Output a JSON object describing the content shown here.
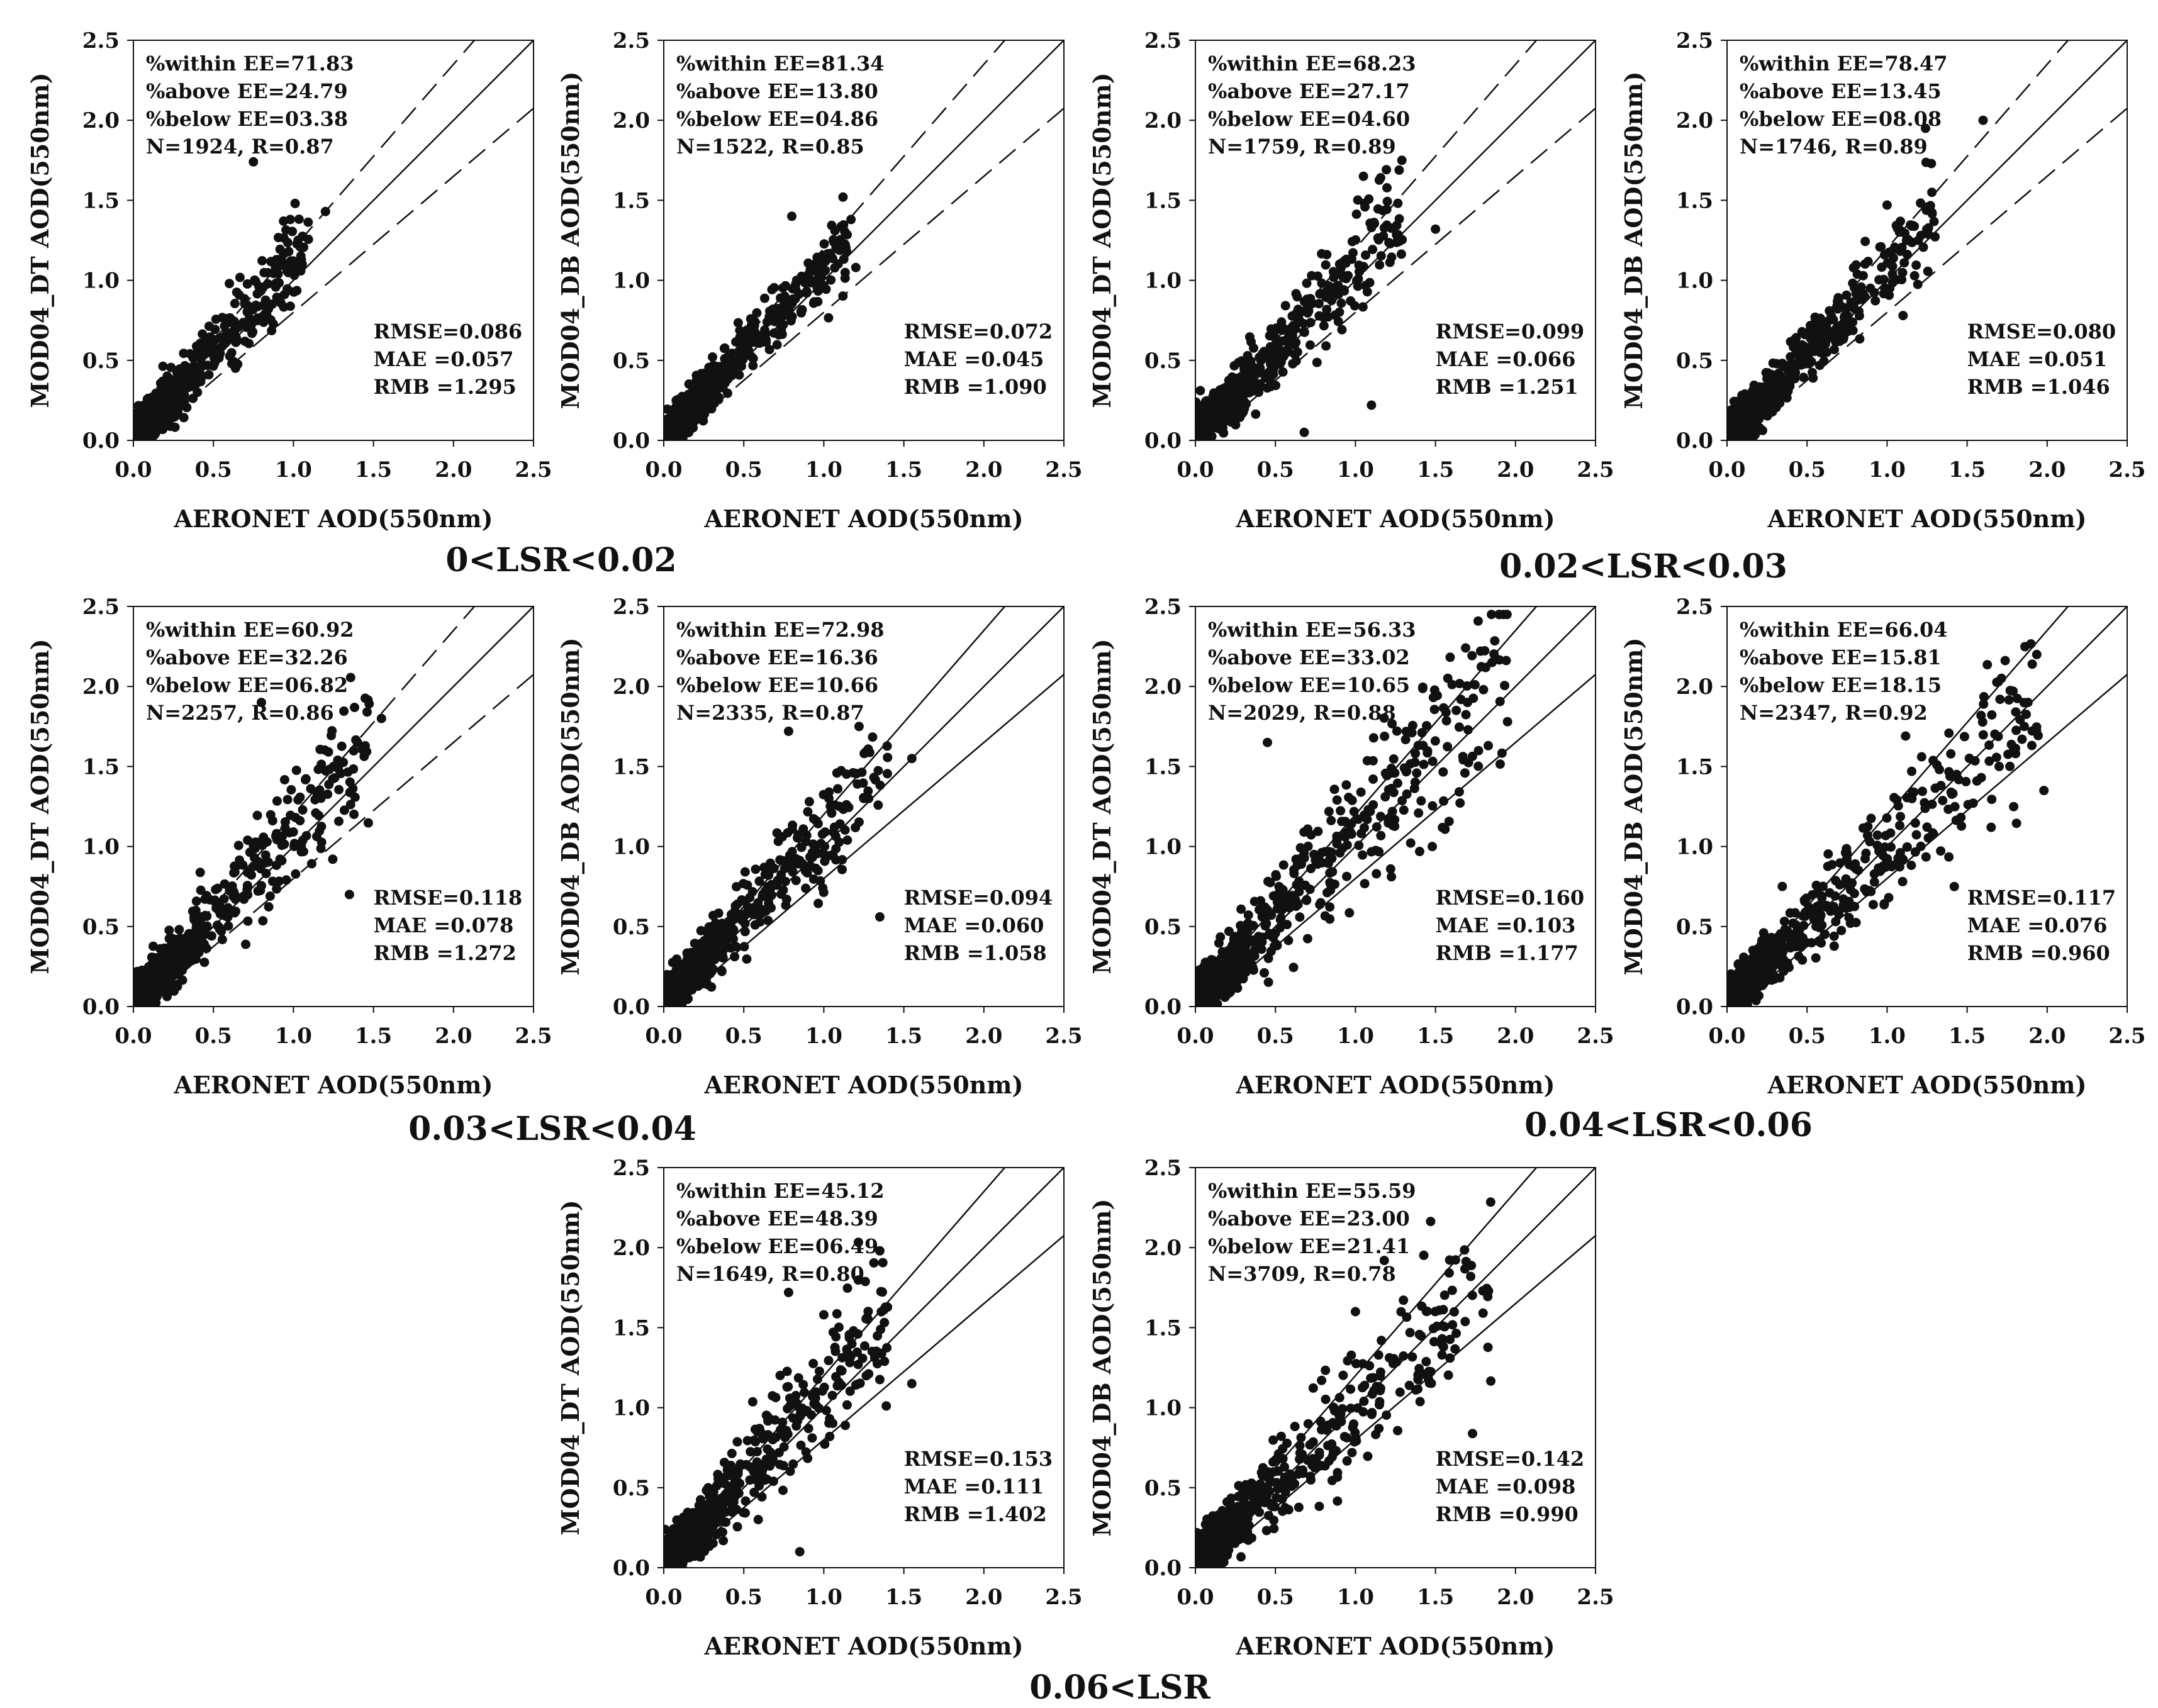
{
  "figure_type": "scatter-grid",
  "axis_range": [
    0,
    2.5
  ],
  "ticks": [
    "0.0",
    "0.5",
    "1.0",
    "1.5",
    "2.0",
    "2.5"
  ],
  "xlabel": "AERONET AOD(550nm)",
  "group_labels": [
    "0<LSR<0.02",
    "0.02<LSR<0.03",
    "0.03<LSR<0.04",
    "0.04<LSR<0.06",
    "0.06<LSR"
  ],
  "chart_data": [
    {
      "id": "p1",
      "type": "scatter",
      "ylabel": "MOD04_DT AOD(550nm)",
      "ee_style": "dashed",
      "stats_top": [
        "%within EE=71.83",
        "%above EE=24.79",
        "%below EE=03.38",
        "N=1924, R=0.87"
      ],
      "stats_bottom": [
        "RMSE=0.086",
        "MAE =0.057",
        "RMB =1.295"
      ],
      "spread": 0.9,
      "xmax": 1.1,
      "outliers": [
        [
          0.98,
          1.38
        ],
        [
          1.2,
          1.43
        ],
        [
          0.75,
          1.74
        ],
        [
          0.9,
          1.1
        ],
        [
          0.6,
          0.98
        ]
      ]
    },
    {
      "id": "p2",
      "type": "scatter",
      "ylabel": "MOD04_DB AOD(550nm)",
      "ee_style": "dashed",
      "stats_top": [
        "%within EE=81.34",
        "%above EE=13.80",
        "%below EE=04.86",
        "N=1522, R=0.85"
      ],
      "stats_bottom": [
        "RMSE=0.072",
        "MAE =0.045",
        "RMB =1.090"
      ],
      "spread": 0.7,
      "xmax": 1.15,
      "outliers": [
        [
          1.12,
          1.52
        ],
        [
          0.8,
          1.4
        ],
        [
          1.17,
          1.38
        ],
        [
          1.2,
          1.08
        ],
        [
          0.95,
          1.0
        ]
      ]
    },
    {
      "id": "p3",
      "type": "scatter",
      "ylabel": "MOD04_DT AOD(550nm)",
      "ee_style": "dashed",
      "stats_top": [
        "%within EE=68.23",
        "%above EE=27.17",
        "%below EE=04.60",
        "N=1759, R=0.89"
      ],
      "stats_bottom": [
        "RMSE=0.099",
        "MAE =0.066",
        "RMB =1.251"
      ],
      "spread": 1.0,
      "xmax": 1.3,
      "outliers": [
        [
          1.1,
          0.22
        ],
        [
          1.05,
          1.65
        ],
        [
          1.29,
          1.75
        ],
        [
          1.5,
          1.32
        ],
        [
          0.68,
          0.05
        ]
      ]
    },
    {
      "id": "p4",
      "type": "scatter",
      "ylabel": "MOD04_DB AOD(550nm)",
      "ee_style": "dashed",
      "stats_top": [
        "%within EE=78.47",
        "%above EE=13.45",
        "%below EE=08.08",
        "N=1746, R=0.89"
      ],
      "stats_bottom": [
        "RMSE=0.080",
        "MAE =0.051",
        "RMB =1.046"
      ],
      "spread": 0.9,
      "xmax": 1.3,
      "outliers": [
        [
          1.6,
          2.0
        ],
        [
          1.24,
          1.95
        ],
        [
          1.28,
          1.55
        ],
        [
          1.0,
          1.47
        ],
        [
          1.1,
          0.78
        ]
      ]
    },
    {
      "id": "p5",
      "type": "scatter",
      "ylabel": "MOD04_DT AOD(550nm)",
      "ee_style": "dashed",
      "stats_top": [
        "%within EE=60.92",
        "%above EE=32.26",
        "%below EE=06.82",
        "N=2257, R=0.86"
      ],
      "stats_bottom": [
        "RMSE=0.118",
        "MAE =0.078",
        "RMB =1.272"
      ],
      "spread": 1.1,
      "xmax": 1.5,
      "outliers": [
        [
          0.8,
          1.9
        ],
        [
          1.55,
          1.8
        ],
        [
          1.4,
          1.65
        ],
        [
          1.35,
          0.7
        ],
        [
          1.25,
          1.5
        ]
      ]
    },
    {
      "id": "p6",
      "type": "scatter",
      "ylabel": "MOD04_DB AOD(550nm)",
      "ee_style": "solid",
      "stats_top": [
        "%within EE=72.98",
        "%above EE=16.36",
        "%below EE=10.66",
        "N=2335, R=0.87"
      ],
      "stats_bottom": [
        "RMSE=0.094",
        "MAE =0.060",
        "RMB =1.058"
      ],
      "spread": 1.0,
      "xmax": 1.4,
      "outliers": [
        [
          1.22,
          1.75
        ],
        [
          1.55,
          1.55
        ],
        [
          0.78,
          1.72
        ],
        [
          1.35,
          0.56
        ],
        [
          1.28,
          1.3
        ]
      ]
    },
    {
      "id": "p7",
      "type": "scatter",
      "ylabel": "MOD04_DT AOD(550nm)",
      "ee_style": "solid",
      "stats_top": [
        "%within EE=56.33",
        "%above EE=33.02",
        "%below EE=10.65",
        "N=2029, R=0.88"
      ],
      "stats_bottom": [
        "RMSE=0.160",
        "MAE =0.103",
        "RMB =1.177"
      ],
      "spread": 1.3,
      "xmax": 1.95,
      "outliers": [
        [
          1.8,
          1.98
        ],
        [
          1.95,
          1.78
        ],
        [
          0.45,
          1.65
        ],
        [
          1.48,
          1.0
        ],
        [
          1.7,
          1.9
        ]
      ]
    },
    {
      "id": "p8",
      "type": "scatter",
      "ylabel": "MOD04_DB AOD(550nm)",
      "ee_style": "solid",
      "stats_top": [
        "%within EE=66.04",
        "%above EE=15.81",
        "%below EE=18.15",
        "N=2347, R=0.92"
      ],
      "stats_bottom": [
        "RMSE=0.117",
        "MAE =0.076",
        "RMB =0.960"
      ],
      "spread": 1.1,
      "xmax": 1.95,
      "outliers": [
        [
          1.88,
          1.9
        ],
        [
          1.98,
          1.35
        ],
        [
          1.7,
          1.5
        ],
        [
          1.65,
          1.12
        ],
        [
          1.42,
          0.75
        ]
      ]
    },
    {
      "id": "p9",
      "type": "scatter",
      "ylabel": "MOD04_DT AOD(550nm)",
      "ee_style": "solid",
      "stats_top": [
        "%within EE=45.12",
        "%above EE=48.39",
        "%below EE=06.49",
        "N=1649, R=0.80"
      ],
      "stats_bottom": [
        "RMSE=0.153",
        "MAE =0.111",
        "RMB =1.402"
      ],
      "spread": 1.25,
      "xmax": 1.4,
      "outliers": [
        [
          1.35,
          1.98
        ],
        [
          0.78,
          1.72
        ],
        [
          1.55,
          1.15
        ],
        [
          1.0,
          1.58
        ],
        [
          0.85,
          0.1
        ]
      ]
    },
    {
      "id": "p10",
      "type": "scatter",
      "ylabel": "MOD04_DB AOD(550nm)",
      "ee_style": "solid",
      "stats_top": [
        "%within EE=55.59",
        "%above EE=23.00",
        "%below EE=21.41",
        "N=3709, R=0.78"
      ],
      "stats_bottom": [
        "RMSE=0.142",
        "MAE =0.098",
        "RMB =0.990"
      ],
      "spread": 1.2,
      "xmax": 1.85,
      "outliers": [
        [
          1.18,
          1.92
        ],
        [
          1.72,
          1.82
        ],
        [
          1.82,
          1.72
        ],
        [
          1.55,
          1.38
        ],
        [
          1.0,
          1.6
        ]
      ]
    }
  ]
}
